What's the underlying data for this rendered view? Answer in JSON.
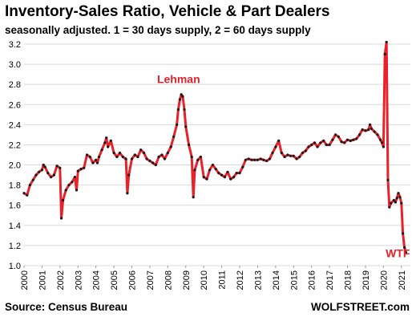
{
  "title": "Inventory-Sales Ratio, Vehicle & Part Dealers",
  "subtitle": "seasonally adjusted. 1 = 30 days supply, 2 = 60 days supply",
  "source": "Source: Census Bureau",
  "brand": "WOLFSTREET.com",
  "colors": {
    "line": "#e8212a",
    "markers": "#1a1a1a",
    "grid": "#d9d9d9",
    "annotation": "#e8212a"
  },
  "chart_data": {
    "type": "line",
    "ylim": [
      1.0,
      3.2
    ],
    "xlim": [
      2000.0,
      2021.5
    ],
    "grid": true,
    "y_ticks": [
      1.0,
      1.2,
      1.4,
      1.6,
      1.8,
      2.0,
      2.2,
      2.4,
      2.6,
      2.8,
      3.0,
      3.2
    ],
    "y_tick_labels": [
      "1.0",
      "1.2",
      "1.4",
      "1.6",
      "1.8",
      "2.0",
      "2.2",
      "2.4",
      "2.6",
      "2.8",
      "3.0",
      "3.2"
    ],
    "x_ticks": [
      2000,
      2001,
      2002,
      2003,
      2004,
      2005,
      2006,
      2007,
      2008,
      2009,
      2010,
      2011,
      2012,
      2013,
      2014,
      2015,
      2016,
      2017,
      2018,
      2019,
      2020,
      2021
    ],
    "x_tick_labels": [
      "2000",
      "2001",
      "2002",
      "2003",
      "2004",
      "2005",
      "2006",
      "2007",
      "2008",
      "2009",
      "2010",
      "2011",
      "2012",
      "2013",
      "2014",
      "2015",
      "2016",
      "2017",
      "2018",
      "2019",
      "2020",
      "2021"
    ],
    "annotations": [
      {
        "text": "Lehman",
        "x": 2008.6,
        "y": 2.75
      },
      {
        "text": "WTF",
        "x": 2020.8,
        "y": 1.02
      }
    ],
    "series": [
      {
        "points": [
          [
            2000.0,
            1.72
          ],
          [
            2000.17,
            1.7
          ],
          [
            2000.33,
            1.8
          ],
          [
            2000.5,
            1.85
          ],
          [
            2000.67,
            1.9
          ],
          [
            2000.83,
            1.93
          ],
          [
            2001.0,
            1.95
          ],
          [
            2001.08,
            2.0
          ],
          [
            2001.17,
            1.98
          ],
          [
            2001.33,
            1.92
          ],
          [
            2001.5,
            1.88
          ],
          [
            2001.67,
            1.9
          ],
          [
            2001.83,
            1.99
          ],
          [
            2002.0,
            1.97
          ],
          [
            2002.08,
            1.47
          ],
          [
            2002.17,
            1.65
          ],
          [
            2002.33,
            1.75
          ],
          [
            2002.5,
            1.8
          ],
          [
            2002.67,
            1.83
          ],
          [
            2002.83,
            1.88
          ],
          [
            2002.92,
            1.75
          ],
          [
            2003.0,
            1.94
          ],
          [
            2003.17,
            1.96
          ],
          [
            2003.33,
            1.97
          ],
          [
            2003.5,
            2.1
          ],
          [
            2003.67,
            2.08
          ],
          [
            2003.83,
            2.02
          ],
          [
            2004.0,
            2.05
          ],
          [
            2004.08,
            2.02
          ],
          [
            2004.17,
            2.08
          ],
          [
            2004.33,
            2.15
          ],
          [
            2004.5,
            2.22
          ],
          [
            2004.58,
            2.27
          ],
          [
            2004.67,
            2.18
          ],
          [
            2004.83,
            2.24
          ],
          [
            2005.0,
            2.12
          ],
          [
            2005.17,
            2.08
          ],
          [
            2005.33,
            2.12
          ],
          [
            2005.5,
            2.08
          ],
          [
            2005.67,
            2.06
          ],
          [
            2005.75,
            1.72
          ],
          [
            2005.83,
            1.9
          ],
          [
            2006.0,
            2.06
          ],
          [
            2006.17,
            2.1
          ],
          [
            2006.33,
            2.08
          ],
          [
            2006.5,
            2.15
          ],
          [
            2006.67,
            2.12
          ],
          [
            2006.83,
            2.06
          ],
          [
            2007.0,
            2.04
          ],
          [
            2007.17,
            2.02
          ],
          [
            2007.33,
            2.0
          ],
          [
            2007.5,
            2.08
          ],
          [
            2007.67,
            2.1
          ],
          [
            2007.83,
            2.06
          ],
          [
            2008.0,
            2.12
          ],
          [
            2008.17,
            2.18
          ],
          [
            2008.33,
            2.28
          ],
          [
            2008.5,
            2.4
          ],
          [
            2008.58,
            2.55
          ],
          [
            2008.67,
            2.65
          ],
          [
            2008.75,
            2.7
          ],
          [
            2008.83,
            2.68
          ],
          [
            2008.92,
            2.55
          ],
          [
            2009.0,
            2.38
          ],
          [
            2009.17,
            2.2
          ],
          [
            2009.33,
            2.08
          ],
          [
            2009.42,
            1.68
          ],
          [
            2009.5,
            1.95
          ],
          [
            2009.67,
            2.05
          ],
          [
            2009.83,
            2.08
          ],
          [
            2010.0,
            1.88
          ],
          [
            2010.17,
            1.86
          ],
          [
            2010.33,
            1.95
          ],
          [
            2010.5,
            2.0
          ],
          [
            2010.67,
            1.96
          ],
          [
            2010.83,
            1.92
          ],
          [
            2011.0,
            1.9
          ],
          [
            2011.17,
            1.88
          ],
          [
            2011.33,
            1.93
          ],
          [
            2011.5,
            1.86
          ],
          [
            2011.67,
            1.88
          ],
          [
            2011.83,
            1.92
          ],
          [
            2012.0,
            1.92
          ],
          [
            2012.17,
            1.98
          ],
          [
            2012.33,
            2.05
          ],
          [
            2012.5,
            2.06
          ],
          [
            2012.67,
            2.05
          ],
          [
            2012.83,
            2.05
          ],
          [
            2013.0,
            2.05
          ],
          [
            2013.17,
            2.06
          ],
          [
            2013.33,
            2.05
          ],
          [
            2013.5,
            2.04
          ],
          [
            2013.67,
            2.06
          ],
          [
            2013.83,
            2.12
          ],
          [
            2014.0,
            2.18
          ],
          [
            2014.17,
            2.24
          ],
          [
            2014.33,
            2.12
          ],
          [
            2014.5,
            2.08
          ],
          [
            2014.67,
            2.1
          ],
          [
            2014.83,
            2.09
          ],
          [
            2015.0,
            2.09
          ],
          [
            2015.17,
            2.06
          ],
          [
            2015.33,
            2.08
          ],
          [
            2015.5,
            2.12
          ],
          [
            2015.67,
            2.14
          ],
          [
            2015.83,
            2.18
          ],
          [
            2016.0,
            2.2
          ],
          [
            2016.17,
            2.22
          ],
          [
            2016.33,
            2.18
          ],
          [
            2016.5,
            2.22
          ],
          [
            2016.67,
            2.24
          ],
          [
            2016.83,
            2.2
          ],
          [
            2017.0,
            2.2
          ],
          [
            2017.17,
            2.25
          ],
          [
            2017.33,
            2.3
          ],
          [
            2017.5,
            2.28
          ],
          [
            2017.67,
            2.23
          ],
          [
            2017.83,
            2.22
          ],
          [
            2018.0,
            2.25
          ],
          [
            2018.17,
            2.24
          ],
          [
            2018.33,
            2.25
          ],
          [
            2018.5,
            2.26
          ],
          [
            2018.67,
            2.3
          ],
          [
            2018.83,
            2.35
          ],
          [
            2019.0,
            2.34
          ],
          [
            2019.17,
            2.35
          ],
          [
            2019.25,
            2.4
          ],
          [
            2019.33,
            2.36
          ],
          [
            2019.5,
            2.33
          ],
          [
            2019.67,
            2.3
          ],
          [
            2019.83,
            2.25
          ],
          [
            2019.92,
            2.22
          ],
          [
            2020.0,
            2.18
          ],
          [
            2020.08,
            3.1
          ],
          [
            2020.17,
            3.22
          ],
          [
            2020.25,
            1.85
          ],
          [
            2020.33,
            1.58
          ],
          [
            2020.42,
            1.62
          ],
          [
            2020.58,
            1.65
          ],
          [
            2020.67,
            1.63
          ],
          [
            2020.75,
            1.67
          ],
          [
            2020.83,
            1.72
          ],
          [
            2020.92,
            1.68
          ],
          [
            2021.0,
            1.62
          ],
          [
            2021.08,
            1.32
          ],
          [
            2021.17,
            1.18
          ],
          [
            2021.25,
            1.13
          ]
        ]
      }
    ]
  }
}
